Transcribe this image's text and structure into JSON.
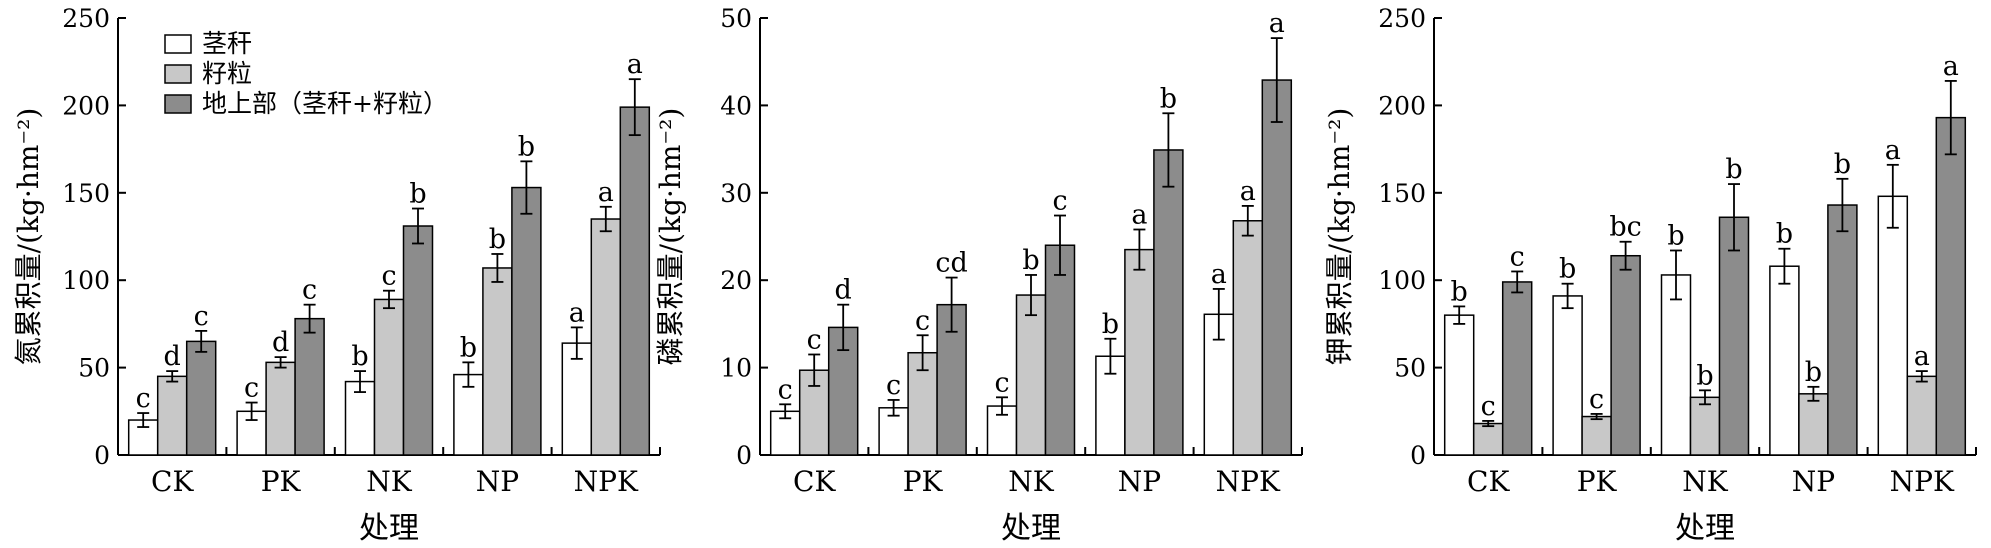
{
  "legend": {
    "items": [
      {
        "label": "茎秆",
        "color": "#ffffff"
      },
      {
        "label": "籽粒",
        "color": "#c8c8c8"
      },
      {
        "label": "地上部（茎秆+籽粒）",
        "color": "#8c8c8c"
      }
    ]
  },
  "chart_data": [
    {
      "type": "bar",
      "xlabel": "处理",
      "ylabel": "氮累积量/(kg·hm⁻²)",
      "ylim": [
        0,
        250
      ],
      "yticks": [
        0,
        50,
        100,
        150,
        200,
        250
      ],
      "categories": [
        "CK",
        "PK",
        "NK",
        "NP",
        "NPK"
      ],
      "series": [
        {
          "name": "茎秆",
          "values": [
            20,
            25,
            42,
            46,
            64
          ],
          "errors": [
            4,
            5,
            6,
            7,
            9
          ],
          "sig": [
            "c",
            "c",
            "b",
            "b",
            "a"
          ]
        },
        {
          "name": "籽粒",
          "values": [
            45,
            53,
            89,
            107,
            135
          ],
          "errors": [
            3,
            3,
            5,
            8,
            7
          ],
          "sig": [
            "d",
            "d",
            "c",
            "b",
            "a"
          ]
        },
        {
          "name": "地上部（茎秆+籽粒）",
          "values": [
            65,
            78,
            131,
            153,
            199
          ],
          "errors": [
            6,
            8,
            10,
            15,
            16
          ],
          "sig": [
            "c",
            "c",
            "b",
            "b",
            "a"
          ]
        }
      ]
    },
    {
      "type": "bar",
      "xlabel": "处理",
      "ylabel": "磷累积量/(kg·hm⁻²)",
      "ylim": [
        0,
        50
      ],
      "yticks": [
        0,
        10,
        20,
        30,
        40,
        50
      ],
      "categories": [
        "CK",
        "PK",
        "NK",
        "NP",
        "NPK"
      ],
      "series": [
        {
          "name": "茎秆",
          "values": [
            5,
            5.4,
            5.6,
            11.3,
            16.1
          ],
          "errors": [
            0.8,
            0.9,
            1.0,
            2.0,
            2.9
          ],
          "sig": [
            "c",
            "c",
            "c",
            "b",
            "a"
          ]
        },
        {
          "name": "籽粒",
          "values": [
            9.7,
            11.7,
            18.3,
            23.5,
            26.8
          ],
          "errors": [
            1.8,
            2.0,
            2.3,
            2.3,
            1.7
          ],
          "sig": [
            "c",
            "c",
            "b",
            "a",
            "a"
          ]
        },
        {
          "name": "地上部（茎秆+籽粒）",
          "values": [
            14.6,
            17.2,
            24.0,
            34.9,
            42.9
          ],
          "errors": [
            2.6,
            3.1,
            3.4,
            4.2,
            4.8
          ],
          "sig": [
            "d",
            "cd",
            "c",
            "b",
            "a"
          ]
        }
      ]
    },
    {
      "type": "bar",
      "xlabel": "处理",
      "ylabel": "钾累积量/(kg·hm⁻²)",
      "ylim": [
        0,
        250
      ],
      "yticks": [
        0,
        50,
        100,
        150,
        200,
        250
      ],
      "categories": [
        "CK",
        "PK",
        "NK",
        "NP",
        "NPK"
      ],
      "series": [
        {
          "name": "茎秆",
          "values": [
            80,
            91,
            103,
            108,
            148
          ],
          "errors": [
            5,
            7,
            14,
            10,
            18
          ],
          "sig": [
            "b",
            "b",
            "b",
            "b",
            "a"
          ]
        },
        {
          "name": "籽粒",
          "values": [
            18,
            22,
            33,
            35,
            45
          ],
          "errors": [
            1.5,
            1.5,
            4,
            4,
            3
          ],
          "sig": [
            "c",
            "c",
            "b",
            "b",
            "a"
          ]
        },
        {
          "name": "地上部（茎秆+籽粒）",
          "values": [
            99,
            114,
            136,
            143,
            193
          ],
          "errors": [
            6,
            8,
            19,
            15,
            21
          ],
          "sig": [
            "c",
            "bc",
            "b",
            "b",
            "a"
          ]
        }
      ]
    }
  ]
}
